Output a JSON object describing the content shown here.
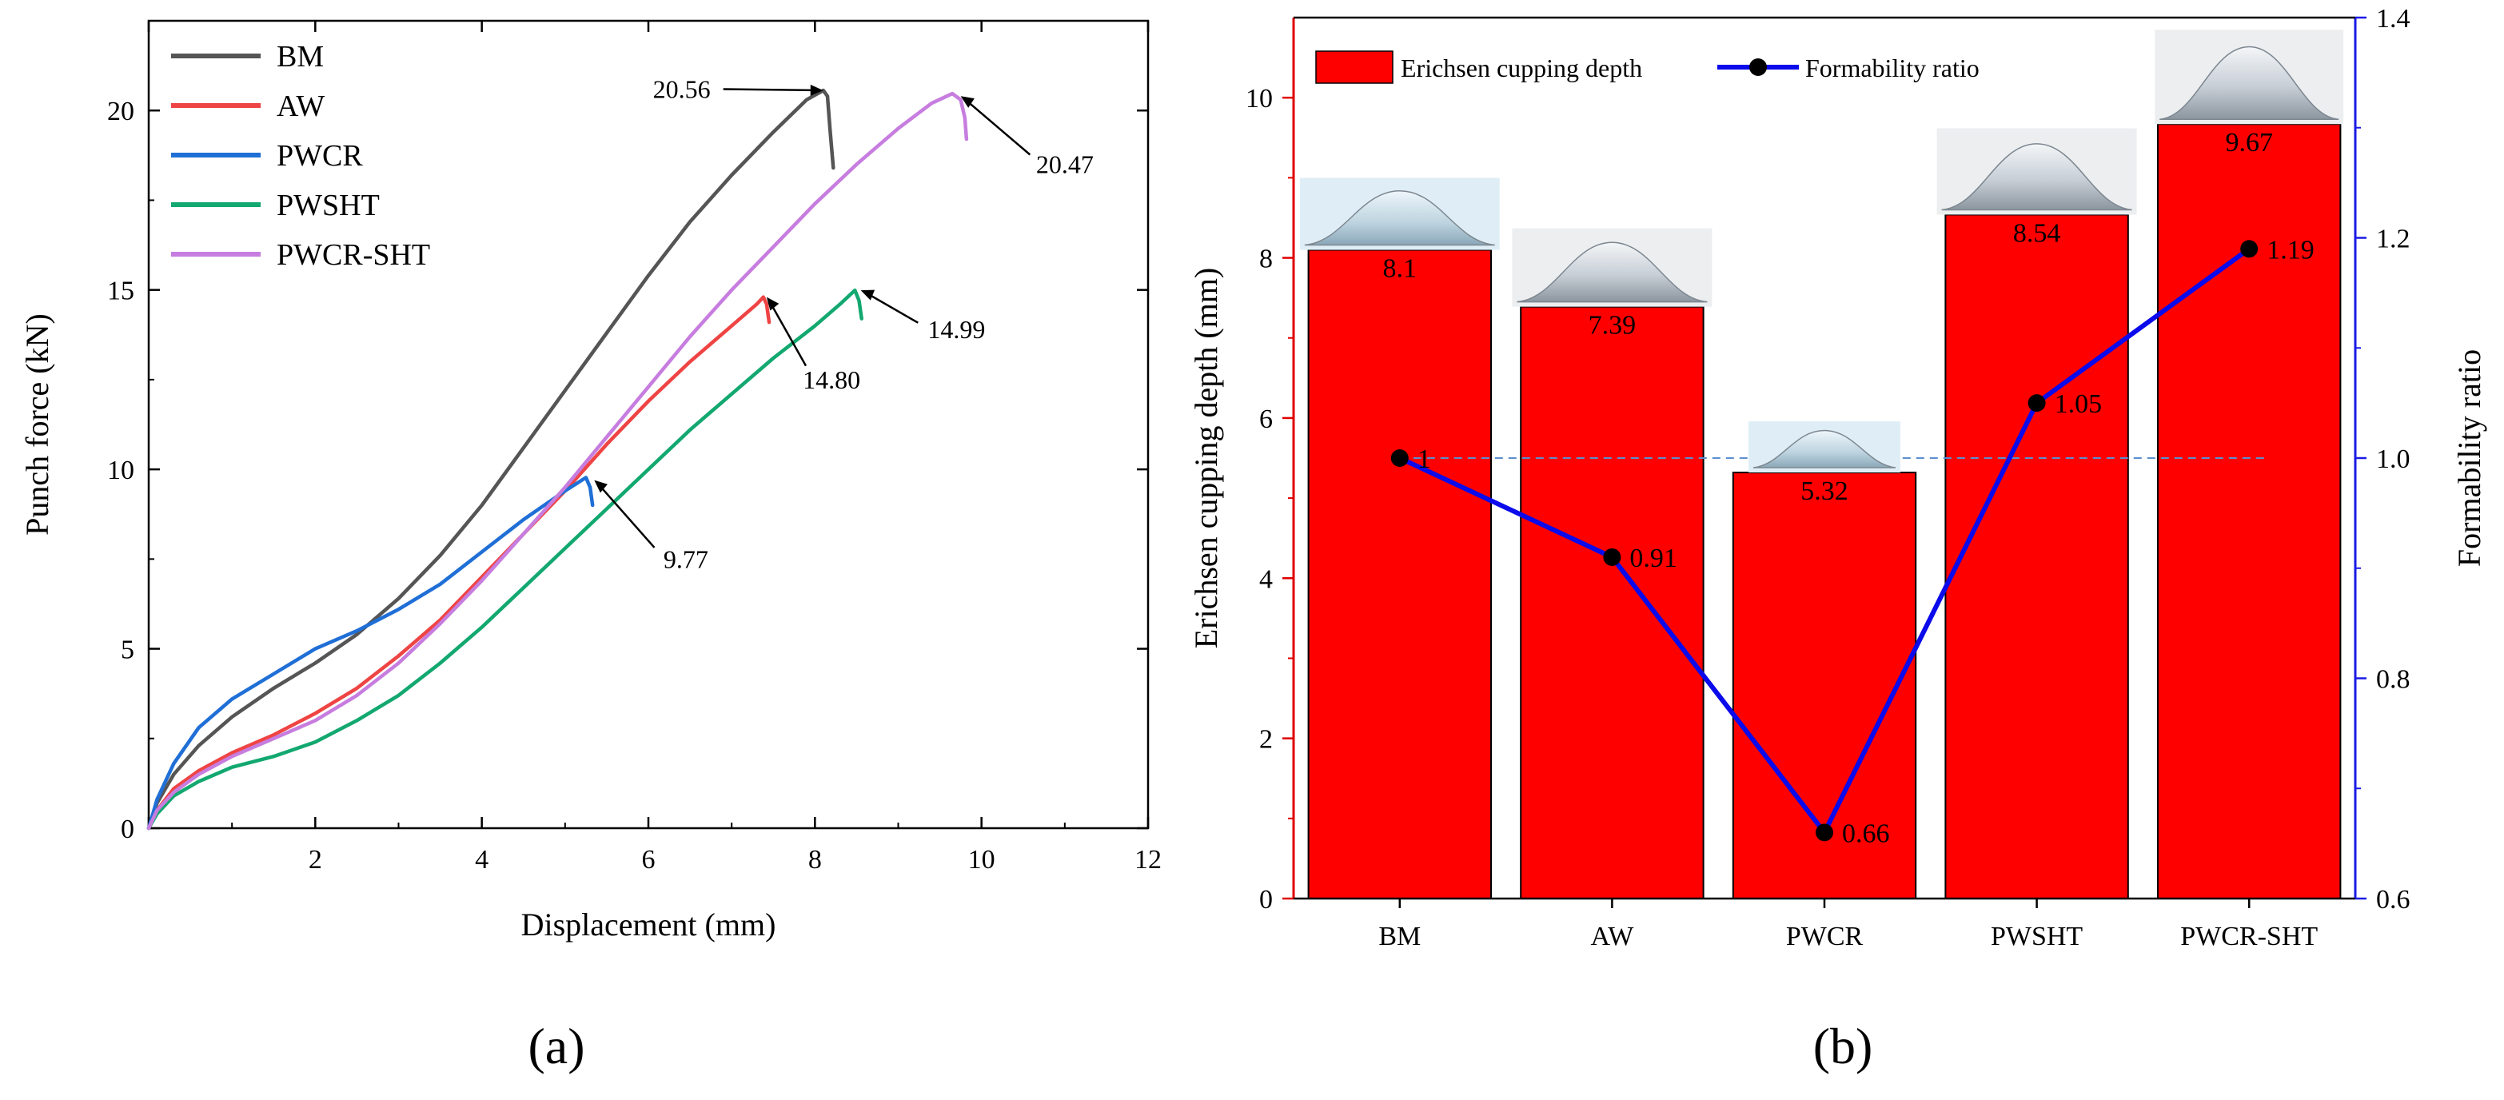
{
  "panels": {
    "a": "(a)",
    "b": "(b)"
  },
  "colors": {
    "BM": "#555555",
    "AW": "#ef4444",
    "PWCR": "#1f6fd6",
    "PWSHT": "#12a870",
    "PWCR-SHT": "#c77ddf",
    "bar": "#ff0000",
    "ratio_line": "#0a0aeb",
    "right_axis": "#1a1ae6",
    "left_axis_b": "#e00000"
  },
  "chart_data": [
    {
      "type": "line",
      "title": "",
      "xlabel": "Displacement (mm)",
      "ylabel": "Punch force (kN)",
      "xlim": [
        0,
        12
      ],
      "ylim": [
        0,
        22.5
      ],
      "xticks": [
        0,
        2,
        4,
        6,
        8,
        10,
        12
      ],
      "xtick_labels": [
        "",
        "2",
        "4",
        "6",
        "8",
        "10",
        "12"
      ],
      "yticks": [
        0,
        5,
        10,
        15,
        20
      ],
      "ytick_labels": [
        "0",
        "5",
        "10",
        "15",
        "20"
      ],
      "legend_position": "top-left",
      "series": [
        {
          "name": "BM",
          "points": [
            [
              0,
              0
            ],
            [
              0.1,
              0.7
            ],
            [
              0.3,
              1.5
            ],
            [
              0.6,
              2.3
            ],
            [
              1.0,
              3.1
            ],
            [
              1.5,
              3.9
            ],
            [
              2.0,
              4.6
            ],
            [
              2.5,
              5.4
            ],
            [
              3.0,
              6.4
            ],
            [
              3.5,
              7.6
            ],
            [
              4.0,
              9.0
            ],
            [
              4.5,
              10.6
            ],
            [
              5.0,
              12.2
            ],
            [
              5.5,
              13.8
            ],
            [
              6.0,
              15.4
            ],
            [
              6.5,
              16.9
            ],
            [
              7.0,
              18.2
            ],
            [
              7.5,
              19.4
            ],
            [
              7.9,
              20.3
            ],
            [
              8.1,
              20.56
            ],
            [
              8.15,
              20.4
            ],
            [
              8.18,
              19.5
            ],
            [
              8.22,
              18.4
            ]
          ]
        },
        {
          "name": "AW",
          "points": [
            [
              0,
              0
            ],
            [
              0.1,
              0.5
            ],
            [
              0.3,
              1.1
            ],
            [
              0.6,
              1.6
            ],
            [
              1.0,
              2.1
            ],
            [
              1.5,
              2.6
            ],
            [
              2.0,
              3.2
            ],
            [
              2.5,
              3.9
            ],
            [
              3.0,
              4.8
            ],
            [
              3.5,
              5.8
            ],
            [
              4.0,
              7.0
            ],
            [
              4.5,
              8.2
            ],
            [
              5.0,
              9.4
            ],
            [
              5.5,
              10.7
            ],
            [
              6.0,
              11.9
            ],
            [
              6.5,
              13.0
            ],
            [
              7.0,
              14.0
            ],
            [
              7.3,
              14.6
            ],
            [
              7.38,
              14.8
            ],
            [
              7.42,
              14.6
            ],
            [
              7.45,
              14.1
            ]
          ]
        },
        {
          "name": "PWCR",
          "points": [
            [
              0,
              0
            ],
            [
              0.1,
              0.8
            ],
            [
              0.3,
              1.8
            ],
            [
              0.6,
              2.8
            ],
            [
              1.0,
              3.6
            ],
            [
              1.5,
              4.3
            ],
            [
              2.0,
              5.0
            ],
            [
              2.5,
              5.5
            ],
            [
              3.0,
              6.1
            ],
            [
              3.5,
              6.8
            ],
            [
              4.0,
              7.7
            ],
            [
              4.5,
              8.6
            ],
            [
              5.0,
              9.4
            ],
            [
              5.25,
              9.77
            ],
            [
              5.3,
              9.5
            ],
            [
              5.33,
              9.0
            ]
          ]
        },
        {
          "name": "PWSHT",
          "points": [
            [
              0,
              0
            ],
            [
              0.1,
              0.4
            ],
            [
              0.3,
              0.9
            ],
            [
              0.6,
              1.3
            ],
            [
              1.0,
              1.7
            ],
            [
              1.5,
              2.0
            ],
            [
              2.0,
              2.4
            ],
            [
              2.5,
              3.0
            ],
            [
              3.0,
              3.7
            ],
            [
              3.5,
              4.6
            ],
            [
              4.0,
              5.6
            ],
            [
              4.5,
              6.7
            ],
            [
              5.0,
              7.8
            ],
            [
              5.5,
              8.9
            ],
            [
              6.0,
              10.0
            ],
            [
              6.5,
              11.1
            ],
            [
              7.0,
              12.1
            ],
            [
              7.5,
              13.1
            ],
            [
              8.0,
              14.0
            ],
            [
              8.3,
              14.6
            ],
            [
              8.48,
              14.99
            ],
            [
              8.53,
              14.7
            ],
            [
              8.56,
              14.2
            ]
          ]
        },
        {
          "name": "PWCR-SHT",
          "points": [
            [
              0,
              0
            ],
            [
              0.1,
              0.5
            ],
            [
              0.3,
              1.0
            ],
            [
              0.6,
              1.5
            ],
            [
              1.0,
              2.0
            ],
            [
              1.5,
              2.5
            ],
            [
              2.0,
              3.0
            ],
            [
              2.5,
              3.7
            ],
            [
              3.0,
              4.6
            ],
            [
              3.5,
              5.7
            ],
            [
              4.0,
              6.9
            ],
            [
              4.5,
              8.2
            ],
            [
              5.0,
              9.5
            ],
            [
              5.5,
              10.9
            ],
            [
              6.0,
              12.3
            ],
            [
              6.5,
              13.7
            ],
            [
              7.0,
              15.0
            ],
            [
              7.5,
              16.2
            ],
            [
              8.0,
              17.4
            ],
            [
              8.5,
              18.5
            ],
            [
              9.0,
              19.5
            ],
            [
              9.4,
              20.2
            ],
            [
              9.65,
              20.47
            ],
            [
              9.75,
              20.3
            ],
            [
              9.8,
              19.8
            ],
            [
              9.82,
              19.2
            ]
          ]
        }
      ],
      "annotations": [
        {
          "text": "20.56",
          "series": "BM",
          "at": [
            8.1,
            20.56
          ],
          "label_at": [
            6.4,
            20.6
          ]
        },
        {
          "text": "20.47",
          "series": "PWCR-SHT",
          "at": [
            9.75,
            20.4
          ],
          "label_at": [
            11.0,
            18.5
          ]
        },
        {
          "text": "14.80",
          "series": "AW",
          "at": [
            7.42,
            14.8
          ],
          "label_at": [
            8.2,
            12.5
          ]
        },
        {
          "text": "14.99",
          "series": "PWSHT",
          "at": [
            8.55,
            14.99
          ],
          "label_at": [
            9.7,
            13.9
          ]
        },
        {
          "text": "9.77",
          "series": "PWCR",
          "at": [
            5.35,
            9.7
          ],
          "label_at": [
            6.45,
            7.5
          ]
        }
      ]
    },
    {
      "type": "bar",
      "title": "",
      "categories": [
        "BM",
        "AW",
        "PWCR",
        "PWSHT",
        "PWCR-SHT"
      ],
      "ylabel": "Erichsen cupping depth (mm)",
      "y2label": "Formability ratio",
      "ylim": [
        0,
        11
      ],
      "y2lim": [
        0.6,
        1.4
      ],
      "yticks": [
        0,
        2,
        4,
        6,
        8,
        10
      ],
      "ytick_labels": [
        "0",
        "2",
        "4",
        "6",
        "8",
        "10"
      ],
      "y2ticks": [
        0.6,
        0.8,
        1.0,
        1.2,
        1.4
      ],
      "y2tick_labels": [
        "0.6",
        "0.8",
        "1.0",
        "1.2",
        "1.4"
      ],
      "reference_line_y2": 1.0,
      "legend_position": "top-left",
      "series": [
        {
          "name": "Erichsen cupping depth",
          "axis": "left",
          "kind": "bar",
          "values": [
            8.1,
            7.39,
            5.32,
            8.54,
            9.67
          ],
          "labels": [
            "8.1",
            "7.39",
            "5.32",
            "8.54",
            "9.67"
          ]
        },
        {
          "name": "Formability ratio",
          "axis": "right",
          "kind": "line",
          "values": [
            1.0,
            0.91,
            0.66,
            1.05,
            1.19
          ],
          "labels": [
            "1",
            "0.91",
            "0.66",
            "1.05",
            "1.19"
          ]
        }
      ],
      "photo_insets": [
        "dome photo above BM bar",
        "dome photo above AW bar",
        "dome photo above PWCR bar",
        "dome photo above PWSHT bar",
        "dome photo above PWCR-SHT bar"
      ]
    }
  ]
}
